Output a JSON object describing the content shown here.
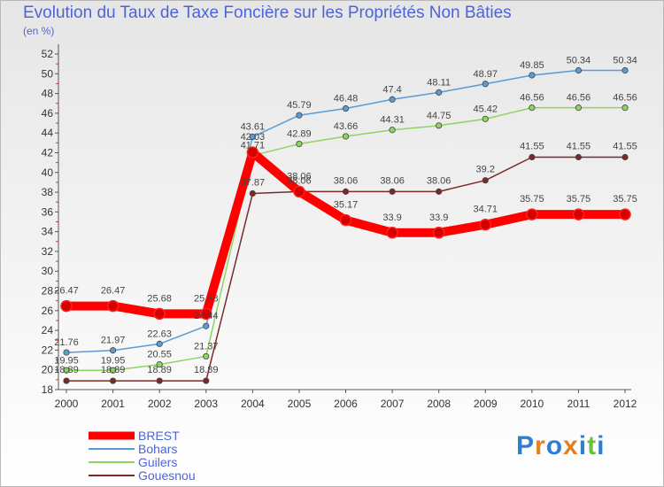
{
  "title": "Evolution du Taux de Taxe Foncière sur les Propriétés Non Bâties",
  "unit_label": "(en %)",
  "brand": {
    "logo_text": "Proxiti",
    "letters": [
      "P",
      "r",
      "o",
      "x",
      "i",
      "t",
      "i"
    ],
    "colors": [
      "#2f7fd0",
      "#e67e22",
      "#2f7fd0",
      "#e67e22",
      "#2f7fd0",
      "#6bbf3a",
      "#2f7fd0"
    ]
  },
  "chart_data": {
    "type": "line",
    "title": "Evolution du Taux de Taxe Foncière sur les Propriétés Non Bâties",
    "xlabel": "",
    "ylabel": "(en %)",
    "x": [
      "2000",
      "2001",
      "2002",
      "2003",
      "2004",
      "2005",
      "2006",
      "2007",
      "2008",
      "2009",
      "2010",
      "2011",
      "2012"
    ],
    "yticks": [
      18,
      20,
      22,
      24,
      26,
      28,
      30,
      32,
      34,
      36,
      38,
      40,
      42,
      44,
      46,
      48,
      50,
      52
    ],
    "ylim": [
      18,
      52
    ],
    "grid": false,
    "legend": "bottom-left",
    "series": [
      {
        "name": "BREST",
        "color": "#ff0000",
        "values": [
          26.47,
          26.47,
          25.68,
          25.68,
          42.03,
          38.06,
          35.17,
          33.9,
          33.9,
          34.71,
          35.75,
          35.75,
          35.75
        ],
        "labels": [
          "26.47",
          "26.47",
          "25.68",
          "25.68",
          "42.03",
          "38.06",
          "35.17",
          "33.9",
          "33.9",
          "34.71",
          "35.75",
          "35.75",
          "35.75"
        ]
      },
      {
        "name": "Bohars",
        "color": "#5b9bd5",
        "values": [
          21.76,
          21.97,
          22.63,
          24.44,
          43.61,
          45.79,
          46.48,
          47.4,
          48.11,
          48.97,
          49.85,
          50.34,
          50.34
        ],
        "labels": [
          "21.76",
          "21.97",
          "22.63",
          "24.44",
          "43.61",
          "45.79",
          "46.48",
          "47.4",
          "48.11",
          "48.97",
          "49.85",
          "50.34",
          "50.34"
        ]
      },
      {
        "name": "Guilers",
        "color": "#8fd45f",
        "values": [
          19.95,
          19.95,
          20.55,
          21.37,
          41.71,
          42.89,
          43.66,
          44.31,
          44.75,
          45.42,
          46.56,
          46.56,
          46.56
        ],
        "labels": [
          "19.95",
          "19.95",
          "20.55",
          "21.37",
          "41.71",
          "42.89",
          "43.66",
          "44.31",
          "44.75",
          "45.42",
          "46.56",
          "46.56",
          "46.56"
        ]
      },
      {
        "name": "Gouesnou",
        "color": "#7a2a2a",
        "values": [
          18.89,
          18.89,
          18.89,
          18.89,
          37.87,
          38.06,
          38.06,
          38.06,
          38.06,
          39.2,
          41.55,
          41.55,
          41.55
        ],
        "labels": [
          "18.89",
          "18.89",
          "18.89",
          "18.89",
          "37.87",
          "38.06",
          "38.06",
          "38.06",
          "38.06",
          "39.2",
          "41.55",
          "41.55",
          "41.55"
        ]
      }
    ]
  }
}
